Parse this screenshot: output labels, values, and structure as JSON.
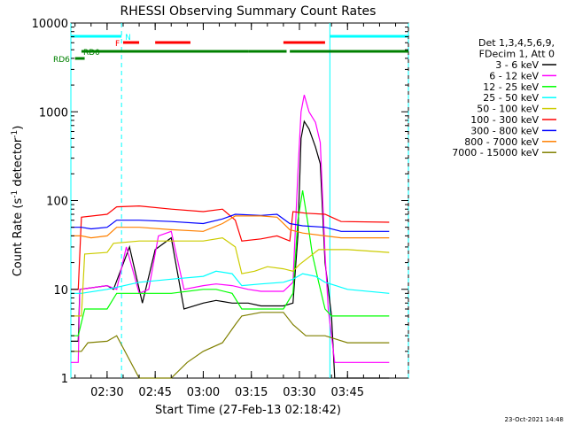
{
  "chart_data": {
    "type": "line",
    "title": "RHESSI Observing Summary Count Rates",
    "xlabel": "Start Time (27-Feb-13 02:18:42)",
    "ylabel_main": "Count Rate (s",
    "ylabel_sup1": "-1",
    "ylabel_mid": " detector",
    "ylabel_sup2": "-1",
    "ylabel_end": ")",
    "yscale": "log",
    "ylim": [
      1,
      10000
    ],
    "xlim_min": [
      18.7,
      124
    ],
    "x_ticks": [
      {
        "min": 30,
        "label": "02:30"
      },
      {
        "min": 45,
        "label": "02:45"
      },
      {
        "min": 60,
        "label": "03:00"
      },
      {
        "min": 75,
        "label": "03:15"
      },
      {
        "min": 90,
        "label": "03:30"
      },
      {
        "min": 105,
        "label": "03:45"
      }
    ],
    "y_ticks": [
      {
        "val": 1,
        "label": "1"
      },
      {
        "val": 10,
        "label": "10"
      },
      {
        "val": 100,
        "label": "100"
      },
      {
        "val": 1000,
        "label": "1000"
      },
      {
        "val": 10000,
        "label": "10000"
      }
    ],
    "legend_header": [
      "Det 1,3,4,5,6,9,",
      "FDecim 1, Att 0"
    ],
    "legend_position": "right",
    "series": [
      {
        "name": "3 - 6 keV",
        "color": "#000000",
        "points": [
          [
            18.7,
            2.6
          ],
          [
            21,
            2.6
          ],
          [
            21.5,
            10
          ],
          [
            30,
            11
          ],
          [
            32,
            10
          ],
          [
            37,
            30
          ],
          [
            41,
            7
          ],
          [
            45,
            28
          ],
          [
            50,
            38
          ],
          [
            54,
            6
          ],
          [
            60,
            7
          ],
          [
            64,
            7.5
          ],
          [
            69,
            7
          ],
          [
            74,
            7
          ],
          [
            78,
            6.5
          ],
          [
            85,
            6.5
          ],
          [
            88,
            7
          ],
          [
            89.5,
            40
          ],
          [
            90.5,
            500
          ],
          [
            91.5,
            780
          ],
          [
            93,
            640
          ],
          [
            95,
            400
          ],
          [
            96.5,
            260
          ],
          [
            98,
            20
          ],
          [
            100,
            5
          ],
          [
            101,
            1
          ],
          [
            118,
            1
          ]
        ]
      },
      {
        "name": "6 - 12 keV",
        "color": "#ff00ff",
        "points": [
          [
            18.7,
            1.5
          ],
          [
            21,
            1.5
          ],
          [
            21.5,
            10
          ],
          [
            30,
            11
          ],
          [
            33,
            10
          ],
          [
            36,
            30
          ],
          [
            40,
            9
          ],
          [
            43,
            10
          ],
          [
            46,
            40
          ],
          [
            50,
            45
          ],
          [
            54,
            10
          ],
          [
            60,
            11
          ],
          [
            64,
            11.5
          ],
          [
            69,
            11
          ],
          [
            74,
            10
          ],
          [
            78,
            9.5
          ],
          [
            85,
            9.5
          ],
          [
            88,
            12
          ],
          [
            89.5,
            200
          ],
          [
            90.5,
            1000
          ],
          [
            91.5,
            1550
          ],
          [
            93,
            1000
          ],
          [
            95,
            760
          ],
          [
            96.5,
            450
          ],
          [
            98,
            25
          ],
          [
            99,
            6
          ],
          [
            101,
            1.5
          ],
          [
            118,
            1.5
          ]
        ]
      },
      {
        "name": "12 - 25 keV",
        "color": "#00ff00",
        "points": [
          [
            18.7,
            3
          ],
          [
            21,
            3
          ],
          [
            23,
            6
          ],
          [
            30,
            6
          ],
          [
            33,
            9
          ],
          [
            40,
            9
          ],
          [
            50,
            9
          ],
          [
            60,
            10
          ],
          [
            64,
            10
          ],
          [
            69,
            9
          ],
          [
            72,
            6
          ],
          [
            78,
            6
          ],
          [
            85,
            6
          ],
          [
            88,
            9
          ],
          [
            89.5,
            60
          ],
          [
            91,
            130
          ],
          [
            92.5,
            60
          ],
          [
            94,
            25
          ],
          [
            96,
            12
          ],
          [
            98,
            6
          ],
          [
            100,
            5
          ],
          [
            118,
            5
          ]
        ]
      },
      {
        "name": "25 - 50 keV",
        "color": "#00ffff",
        "points": [
          [
            18.7,
            9
          ],
          [
            22,
            9
          ],
          [
            30,
            10
          ],
          [
            40,
            12
          ],
          [
            50,
            13
          ],
          [
            60,
            14
          ],
          [
            64,
            16
          ],
          [
            69,
            15
          ],
          [
            72,
            11
          ],
          [
            78,
            11.5
          ],
          [
            85,
            12
          ],
          [
            88,
            13
          ],
          [
            91,
            15
          ],
          [
            95,
            14
          ],
          [
            98,
            12
          ],
          [
            105,
            10
          ],
          [
            118,
            9
          ]
        ]
      },
      {
        "name": "50 - 100 keV",
        "color": "#cccc00",
        "points": [
          [
            18.7,
            5
          ],
          [
            22,
            5
          ],
          [
            23,
            25
          ],
          [
            30,
            26
          ],
          [
            32,
            33
          ],
          [
            40,
            35
          ],
          [
            50,
            35
          ],
          [
            60,
            35
          ],
          [
            66,
            38
          ],
          [
            70,
            30
          ],
          [
            72,
            15
          ],
          [
            76,
            16
          ],
          [
            80,
            18
          ],
          [
            85,
            17
          ],
          [
            88,
            16
          ],
          [
            90,
            19
          ],
          [
            96,
            28
          ],
          [
            105,
            28
          ],
          [
            118,
            26
          ]
        ]
      },
      {
        "name": "100 - 300 keV",
        "color": "#ff0000",
        "points": [
          [
            18.7,
            10
          ],
          [
            21,
            10
          ],
          [
            22,
            65
          ],
          [
            30,
            70
          ],
          [
            33,
            85
          ],
          [
            40,
            87
          ],
          [
            50,
            80
          ],
          [
            60,
            75
          ],
          [
            66,
            80
          ],
          [
            70,
            60
          ],
          [
            72,
            35
          ],
          [
            78,
            37
          ],
          [
            83,
            40
          ],
          [
            87,
            35
          ],
          [
            88,
            75
          ],
          [
            92,
            72
          ],
          [
            98,
            70
          ],
          [
            103,
            58
          ],
          [
            118,
            57
          ]
        ]
      },
      {
        "name": "300 - 800 keV",
        "color": "#0000ff",
        "points": [
          [
            18.7,
            50
          ],
          [
            22,
            50
          ],
          [
            25,
            48
          ],
          [
            30,
            50
          ],
          [
            33,
            60
          ],
          [
            40,
            60
          ],
          [
            50,
            58
          ],
          [
            60,
            55
          ],
          [
            66,
            62
          ],
          [
            70,
            70
          ],
          [
            78,
            68
          ],
          [
            83,
            70
          ],
          [
            87,
            55
          ],
          [
            91,
            52
          ],
          [
            98,
            50
          ],
          [
            103,
            45
          ],
          [
            118,
            45
          ]
        ]
      },
      {
        "name": "800 - 7000 keV",
        "color": "#ff8000",
        "points": [
          [
            18.7,
            40
          ],
          [
            22,
            40
          ],
          [
            25,
            38
          ],
          [
            30,
            40
          ],
          [
            33,
            50
          ],
          [
            40,
            50
          ],
          [
            50,
            47
          ],
          [
            60,
            45
          ],
          [
            66,
            55
          ],
          [
            70,
            67
          ],
          [
            78,
            67
          ],
          [
            83,
            65
          ],
          [
            87,
            47
          ],
          [
            91,
            43
          ],
          [
            98,
            40
          ],
          [
            103,
            38
          ],
          [
            118,
            38
          ]
        ]
      },
      {
        "name": "7000 - 15000 keV",
        "color": "#808000",
        "points": [
          [
            18.7,
            2
          ],
          [
            22,
            2
          ],
          [
            24,
            2.5
          ],
          [
            30,
            2.6
          ],
          [
            33,
            3
          ],
          [
            40,
            1
          ],
          [
            50,
            1
          ],
          [
            55,
            1.5
          ],
          [
            60,
            2
          ],
          [
            66,
            2.5
          ],
          [
            70,
            4
          ],
          [
            72,
            5
          ],
          [
            78,
            5.5
          ],
          [
            85,
            5.5
          ],
          [
            88,
            4
          ],
          [
            92,
            3
          ],
          [
            98,
            3
          ],
          [
            105,
            2.5
          ],
          [
            118,
            2.5
          ]
        ]
      }
    ],
    "flag_rows": [
      {
        "label": "N",
        "color": "#00ffff",
        "segments": [
          [
            18.7,
            34.5
          ],
          [
            99.5,
            124
          ]
        ]
      },
      {
        "label": "F",
        "color": "#ff0000",
        "segments": [
          [
            35,
            40
          ],
          [
            45,
            56
          ],
          [
            85,
            98
          ]
        ]
      },
      {
        "label": "RD0",
        "color": "#008000",
        "segments": [
          [
            22,
            74
          ],
          [
            74,
            86
          ],
          [
            87,
            124
          ]
        ]
      },
      {
        "label": "RD6",
        "color": "#008000",
        "segments": [
          [
            20,
            23
          ]
        ]
      }
    ]
  },
  "footer": {
    "date": "23-Oct-2021 14:48"
  }
}
